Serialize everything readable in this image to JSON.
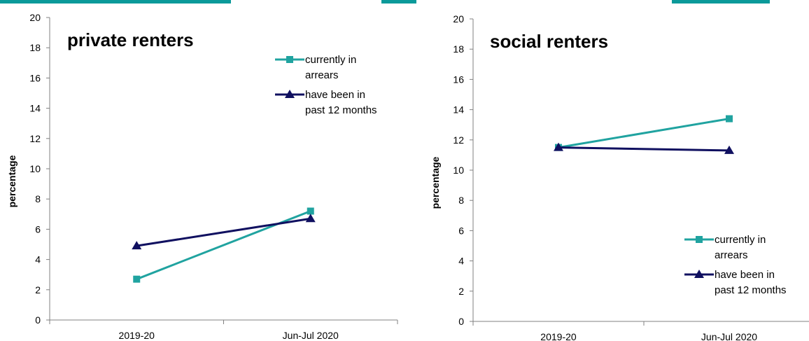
{
  "colors": {
    "series_currently": "#20a3a0",
    "series_past": "#101060",
    "axis": "#808080",
    "title_band": "#0b9a9a"
  },
  "chart_data": [
    {
      "type": "line",
      "title": "private renters",
      "ylabel": "percentage",
      "ylim": [
        0,
        20
      ],
      "yticks": [
        0,
        2,
        4,
        6,
        8,
        10,
        12,
        14,
        16,
        18,
        20
      ],
      "categories": [
        "2019-20",
        "Jun-Jul 2020"
      ],
      "legend_position": "top-right",
      "series": [
        {
          "name": "currently in arrears",
          "name_lines": [
            "currently in",
            "arrears"
          ],
          "marker": "square",
          "color": "#20a3a0",
          "values": [
            2.7,
            7.2
          ]
        },
        {
          "name": "have been in past 12 months",
          "name_lines": [
            "have been in",
            "past 12 months"
          ],
          "marker": "triangle",
          "color": "#101060",
          "values": [
            4.9,
            6.7
          ]
        }
      ]
    },
    {
      "type": "line",
      "title": "social renters",
      "ylabel": "percentage",
      "ylim": [
        0,
        20
      ],
      "yticks": [
        0,
        2,
        4,
        6,
        8,
        10,
        12,
        14,
        16,
        18,
        20
      ],
      "categories": [
        "2019-20",
        "Jun-Jul 2020"
      ],
      "legend_position": "bottom-right",
      "series": [
        {
          "name": "currently in arrears",
          "name_lines": [
            "currently in",
            "arrears"
          ],
          "marker": "square",
          "color": "#20a3a0",
          "values": [
            11.5,
            13.4
          ]
        },
        {
          "name": "have been in past 12 months",
          "name_lines": [
            "have been in",
            "past 12 months"
          ],
          "marker": "triangle",
          "color": "#101060",
          "values": [
            11.5,
            11.3
          ]
        }
      ]
    }
  ]
}
